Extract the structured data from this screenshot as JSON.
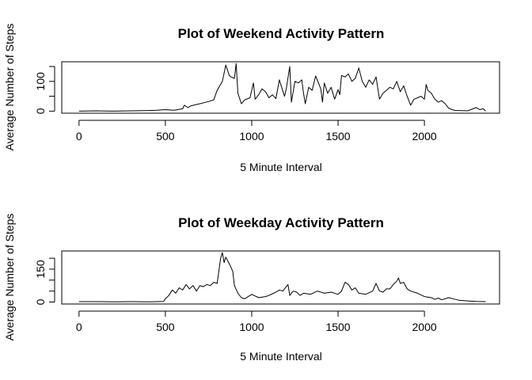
{
  "chart_data": [
    {
      "type": "line",
      "title": "Plot of Weekend Activity Pattern",
      "xlabel": "5 Minute Interval",
      "ylabel": "Average Number of Steps",
      "xlim": [
        -100,
        2435
      ],
      "ylim": [
        -7,
        166
      ],
      "xticks": [
        0,
        500,
        1000,
        1500,
        2000
      ],
      "yticks": [
        0,
        50,
        100,
        150
      ],
      "yticklabels": [
        "0",
        "",
        "100",
        ""
      ],
      "color": "#000000",
      "grid": false,
      "legend": "none",
      "x": [
        0,
        100,
        200,
        300,
        400,
        450,
        500,
        550,
        600,
        610,
        630,
        650,
        700,
        750,
        780,
        800,
        830,
        850,
        870,
        880,
        900,
        910,
        920,
        940,
        960,
        990,
        1010,
        1020,
        1040,
        1060,
        1080,
        1100,
        1120,
        1140,
        1160,
        1180,
        1190,
        1200,
        1220,
        1230,
        1250,
        1270,
        1290,
        1300,
        1310,
        1330,
        1350,
        1370,
        1390,
        1400,
        1410,
        1420,
        1440,
        1460,
        1480,
        1500,
        1510,
        1520,
        1540,
        1560,
        1580,
        1600,
        1620,
        1640,
        1660,
        1680,
        1700,
        1720,
        1740,
        1760,
        1780,
        1800,
        1820,
        1840,
        1860,
        1880,
        1900,
        1920,
        1940,
        1960,
        1980,
        2000,
        2010,
        2020,
        2040,
        2060,
        2080,
        2100,
        2120,
        2140,
        2160,
        2180,
        2200,
        2250,
        2300,
        2320,
        2340,
        2355
      ],
      "y": [
        0,
        1,
        0,
        1,
        2,
        3,
        5,
        3,
        8,
        20,
        12,
        18,
        25,
        32,
        38,
        70,
        100,
        155,
        120,
        115,
        110,
        160,
        60,
        25,
        38,
        45,
        95,
        40,
        55,
        75,
        65,
        45,
        55,
        42,
        105,
        68,
        50,
        75,
        150,
        30,
        100,
        95,
        105,
        60,
        25,
        80,
        70,
        118,
        90,
        75,
        30,
        95,
        60,
        80,
        40,
        72,
        55,
        120,
        115,
        125,
        100,
        110,
        145,
        100,
        80,
        105,
        90,
        115,
        40,
        60,
        70,
        80,
        75,
        100,
        65,
        85,
        50,
        20,
        40,
        45,
        50,
        40,
        90,
        70,
        60,
        40,
        30,
        35,
        25,
        10,
        5,
        2,
        2,
        1,
        12,
        5,
        8,
        0
      ]
    },
    {
      "type": "line",
      "title": "Plot of Weekday Activity Pattern",
      "xlabel": "5 Minute Interval",
      "ylabel": "Average Number of Steps",
      "xlim": [
        -100,
        2435
      ],
      "ylim": [
        -9,
        233
      ],
      "xticks": [
        0,
        500,
        1000,
        1500,
        2000
      ],
      "yticks": [
        0,
        50,
        100,
        150,
        200
      ],
      "yticklabels": [
        "0",
        "",
        "",
        "150",
        ""
      ],
      "color": "#000000",
      "grid": false,
      "legend": "none",
      "x": [
        0,
        100,
        200,
        300,
        400,
        450,
        490,
        500,
        520,
        540,
        560,
        580,
        600,
        620,
        640,
        660,
        680,
        700,
        720,
        740,
        760,
        780,
        800,
        820,
        830,
        840,
        850,
        870,
        890,
        900,
        920,
        940,
        960,
        980,
        1000,
        1040,
        1080,
        1100,
        1140,
        1160,
        1180,
        1200,
        1210,
        1220,
        1240,
        1260,
        1280,
        1300,
        1340,
        1380,
        1420,
        1460,
        1500,
        1520,
        1540,
        1560,
        1580,
        1600,
        1620,
        1660,
        1700,
        1720,
        1740,
        1760,
        1780,
        1800,
        1820,
        1840,
        1850,
        1860,
        1880,
        1900,
        1920,
        1960,
        2000,
        2040,
        2060,
        2080,
        2100,
        2140,
        2180,
        2200,
        2250,
        2300,
        2355
      ],
      "y": [
        2,
        2,
        1,
        2,
        1,
        2,
        3,
        15,
        30,
        55,
        40,
        65,
        55,
        80,
        60,
        75,
        50,
        75,
        70,
        80,
        75,
        90,
        85,
        200,
        225,
        180,
        205,
        175,
        140,
        75,
        40,
        20,
        15,
        25,
        35,
        20,
        25,
        30,
        45,
        55,
        50,
        70,
        80,
        30,
        50,
        45,
        30,
        40,
        35,
        50,
        40,
        45,
        35,
        50,
        90,
        80,
        55,
        65,
        40,
        35,
        50,
        85,
        50,
        45,
        60,
        60,
        80,
        95,
        110,
        85,
        90,
        60,
        50,
        40,
        25,
        20,
        12,
        18,
        10,
        20,
        12,
        8,
        5,
        3,
        2
      ]
    }
  ]
}
